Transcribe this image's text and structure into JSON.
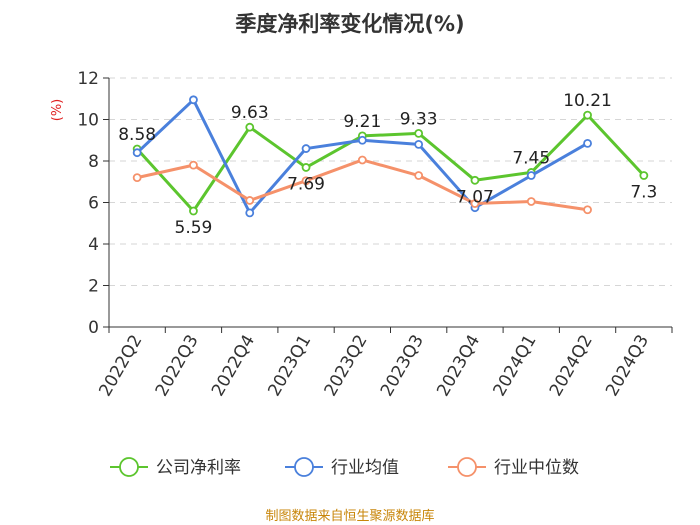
{
  "chart_data": {
    "type": "line",
    "title": "季度净利率变化情况(%)",
    "ylabel": "(%)",
    "xlabel": "",
    "ylim": [
      0,
      12
    ],
    "yticks": [
      0,
      2,
      4,
      6,
      8,
      10,
      12
    ],
    "grid": true,
    "legend_position": "bottom",
    "categories": [
      "2022Q2",
      "2022Q3",
      "2022Q4",
      "2023Q1",
      "2023Q2",
      "2023Q3",
      "2023Q4",
      "2024Q1",
      "2024Q2",
      "2024Q3"
    ],
    "series": [
      {
        "name": "公司净利率",
        "color": "#5cc52e",
        "values": [
          8.58,
          5.59,
          9.63,
          7.69,
          9.21,
          9.33,
          7.07,
          7.45,
          10.21,
          7.3
        ],
        "labels": [
          "8.58",
          "5.59",
          "9.63",
          "7.69",
          "9.21",
          "9.33",
          "7.07",
          "7.45",
          "10.21",
          "7.3"
        ]
      },
      {
        "name": "行业均值",
        "color": "#4a80dc",
        "values": [
          8.4,
          10.95,
          5.5,
          8.6,
          9.0,
          8.8,
          5.75,
          7.3,
          8.85,
          null
        ]
      },
      {
        "name": "行业中位数",
        "color": "#f5916a",
        "values": [
          7.2,
          7.8,
          6.1,
          7.05,
          8.05,
          7.3,
          5.95,
          6.05,
          5.65,
          null
        ]
      }
    ],
    "source": "制图数据来自恒生聚源数据库"
  }
}
